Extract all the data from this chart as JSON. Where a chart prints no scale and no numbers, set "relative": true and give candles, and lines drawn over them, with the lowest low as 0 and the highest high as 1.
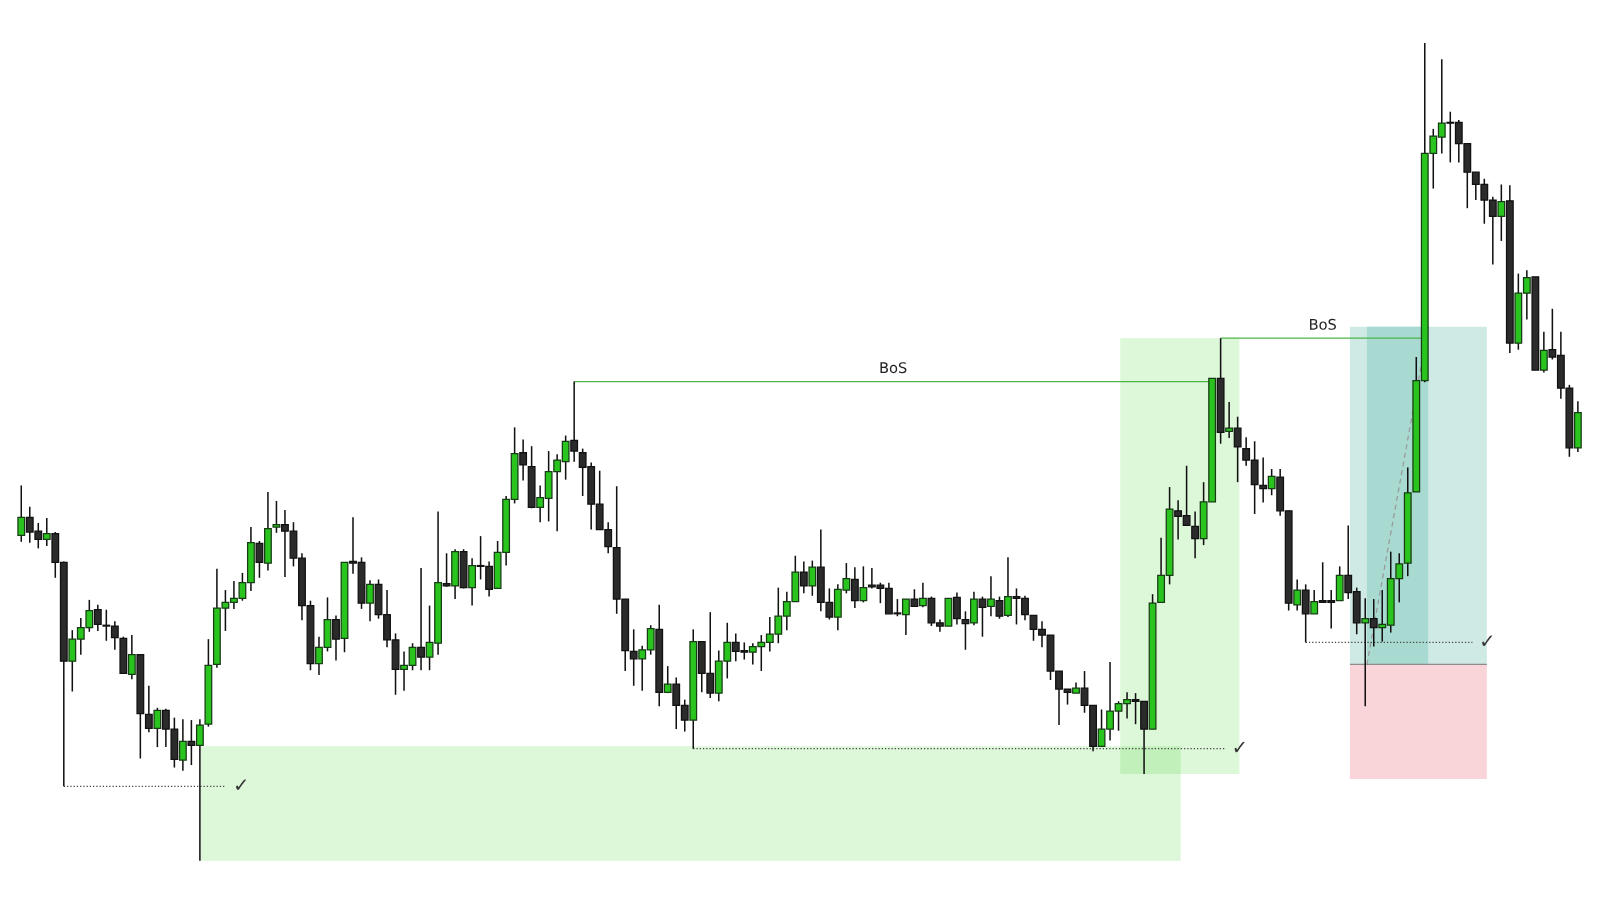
{
  "chart_data": {
    "type": "candlestick",
    "relative": true,
    "tick_labels": false,
    "categories": [
      null,
      null,
      null,
      null,
      null,
      null,
      null,
      null,
      null,
      null,
      null,
      null,
      null,
      null,
      null,
      null,
      null,
      null,
      null,
      null,
      null,
      null,
      null,
      null,
      null,
      null,
      null,
      null,
      null,
      null,
      null,
      null,
      null,
      null,
      null,
      null,
      null,
      null,
      null,
      null,
      null,
      null,
      null,
      null,
      null,
      null,
      null,
      null,
      null,
      null,
      null,
      null,
      null,
      null,
      null,
      null,
      null,
      null,
      null,
      null,
      null,
      null,
      null,
      null,
      null,
      null,
      null,
      null,
      null,
      null,
      null,
      null,
      null,
      null,
      null,
      null,
      null,
      null,
      null,
      null,
      null,
      null,
      null,
      null,
      null,
      null,
      null,
      null,
      null,
      null,
      null,
      null,
      null,
      null,
      null,
      null,
      null,
      null,
      null,
      null,
      null,
      null,
      null,
      null,
      null,
      null,
      null,
      null,
      null,
      null,
      null,
      null,
      null,
      null,
      null,
      null,
      null,
      null,
      null,
      null,
      null,
      null,
      null,
      null,
      null,
      null,
      null,
      null,
      null,
      null,
      null,
      null,
      null,
      null,
      null,
      null,
      null,
      null,
      null,
      null,
      null,
      null,
      null,
      null,
      null,
      null,
      null,
      null,
      null,
      null,
      null,
      null,
      null,
      null,
      null,
      null,
      null,
      null,
      null,
      null,
      null,
      null,
      null,
      null,
      null,
      null,
      null,
      null,
      null,
      null,
      null,
      null,
      null,
      null,
      null,
      null,
      null,
      null,
      null,
      null,
      null,
      null,
      null,
      null
    ],
    "ohlc": [
      [
        0.398,
        0.459,
        0.39,
        0.42
      ],
      [
        0.42,
        0.433,
        0.389,
        0.402
      ],
      [
        0.403,
        0.413,
        0.382,
        0.393
      ],
      [
        0.393,
        0.419,
        0.385,
        0.4
      ],
      [
        0.4,
        0.402,
        0.346,
        0.365
      ],
      [
        0.365,
        0.366,
        0.091,
        0.244
      ],
      [
        0.244,
        0.282,
        0.207,
        0.271
      ],
      [
        0.271,
        0.297,
        0.252,
        0.285
      ],
      [
        0.285,
        0.319,
        0.28,
        0.306
      ],
      [
        0.307,
        0.313,
        0.281,
        0.289
      ],
      [
        0.288,
        0.307,
        0.269,
        0.287
      ],
      [
        0.287,
        0.293,
        0.258,
        0.273
      ],
      [
        0.272,
        0.274,
        0.229,
        0.229
      ],
      [
        0.228,
        0.276,
        0.222,
        0.252
      ],
      [
        0.252,
        0.252,
        0.125,
        0.18
      ],
      [
        0.179,
        0.214,
        0.157,
        0.162
      ],
      [
        0.162,
        0.187,
        0.139,
        0.184
      ],
      [
        0.184,
        0.186,
        0.139,
        0.161
      ],
      [
        0.161,
        0.175,
        0.114,
        0.124
      ],
      [
        0.123,
        0.173,
        0.11,
        0.146
      ],
      [
        0.146,
        0.172,
        0.117,
        0.141
      ],
      [
        0.141,
        0.173,
        0.0,
        0.166
      ],
      [
        0.167,
        0.271,
        0.164,
        0.239
      ],
      [
        0.24,
        0.357,
        0.236,
        0.309
      ],
      [
        0.309,
        0.331,
        0.281,
        0.316
      ],
      [
        0.316,
        0.342,
        0.308,
        0.321
      ],
      [
        0.321,
        0.352,
        0.318,
        0.34
      ],
      [
        0.34,
        0.408,
        0.33,
        0.389
      ],
      [
        0.388,
        0.391,
        0.346,
        0.365
      ],
      [
        0.364,
        0.451,
        0.355,
        0.406
      ],
      [
        0.408,
        0.44,
        0.401,
        0.411
      ],
      [
        0.411,
        0.429,
        0.347,
        0.403
      ],
      [
        0.403,
        0.414,
        0.36,
        0.37
      ],
      [
        0.37,
        0.376,
        0.294,
        0.312
      ],
      [
        0.312,
        0.318,
        0.233,
        0.241
      ],
      [
        0.241,
        0.274,
        0.227,
        0.261
      ],
      [
        0.261,
        0.322,
        0.256,
        0.295
      ],
      [
        0.295,
        0.3,
        0.245,
        0.271
      ],
      [
        0.272,
        0.365,
        0.255,
        0.365
      ],
      [
        0.366,
        0.42,
        0.351,
        0.364
      ],
      [
        0.365,
        0.371,
        0.308,
        0.315
      ],
      [
        0.315,
        0.343,
        0.293,
        0.338
      ],
      [
        0.338,
        0.344,
        0.296,
        0.301
      ],
      [
        0.301,
        0.331,
        0.261,
        0.27
      ],
      [
        0.27,
        0.278,
        0.203,
        0.234
      ],
      [
        0.234,
        0.256,
        0.208,
        0.239
      ],
      [
        0.239,
        0.266,
        0.233,
        0.261
      ],
      [
        0.261,
        0.358,
        0.233,
        0.249
      ],
      [
        0.249,
        0.312,
        0.233,
        0.267
      ],
      [
        0.266,
        0.427,
        0.252,
        0.34
      ],
      [
        0.339,
        0.376,
        0.335,
        0.336
      ],
      [
        0.336,
        0.381,
        0.32,
        0.378
      ],
      [
        0.378,
        0.381,
        0.333,
        0.334
      ],
      [
        0.334,
        0.37,
        0.312,
        0.361
      ],
      [
        0.361,
        0.397,
        0.344,
        0.36
      ],
      [
        0.36,
        0.366,
        0.323,
        0.332
      ],
      [
        0.333,
        0.391,
        0.333,
        0.377
      ],
      [
        0.377,
        0.446,
        0.361,
        0.442
      ],
      [
        0.442,
        0.53,
        0.437,
        0.498
      ],
      [
        0.499,
        0.515,
        0.465,
        0.484
      ],
      [
        0.482,
        0.507,
        0.431,
        0.432
      ],
      [
        0.432,
        0.459,
        0.414,
        0.444
      ],
      [
        0.443,
        0.501,
        0.415,
        0.476
      ],
      [
        0.476,
        0.497,
        0.403,
        0.49
      ],
      [
        0.488,
        0.52,
        0.466,
        0.513
      ],
      [
        0.514,
        0.586,
        0.488,
        0.501
      ],
      [
        0.499,
        0.504,
        0.446,
        0.481
      ],
      [
        0.482,
        0.487,
        0.405,
        0.436
      ],
      [
        0.436,
        0.477,
        0.405,
        0.405
      ],
      [
        0.405,
        0.414,
        0.376,
        0.384
      ],
      [
        0.383,
        0.458,
        0.302,
        0.32
      ],
      [
        0.32,
        0.32,
        0.232,
        0.257
      ],
      [
        0.256,
        0.283,
        0.214,
        0.247
      ],
      [
        0.247,
        0.263,
        0.208,
        0.258
      ],
      [
        0.258,
        0.288,
        0.252,
        0.284
      ],
      [
        0.283,
        0.313,
        0.189,
        0.206
      ],
      [
        0.206,
        0.238,
        0.205,
        0.216
      ],
      [
        0.216,
        0.224,
        0.161,
        0.19
      ],
      [
        0.19,
        0.197,
        0.158,
        0.172
      ],
      [
        0.172,
        0.283,
        0.137,
        0.268
      ],
      [
        0.268,
        0.268,
        0.206,
        0.229
      ],
      [
        0.229,
        0.304,
        0.199,
        0.205
      ],
      [
        0.205,
        0.257,
        0.195,
        0.244
      ],
      [
        0.244,
        0.291,
        0.223,
        0.267
      ],
      [
        0.267,
        0.278,
        0.244,
        0.256
      ],
      [
        0.257,
        0.267,
        0.246,
        0.255
      ],
      [
        0.255,
        0.266,
        0.24,
        0.262
      ],
      [
        0.262,
        0.276,
        0.232,
        0.267
      ],
      [
        0.267,
        0.298,
        0.256,
        0.277
      ],
      [
        0.277,
        0.334,
        0.266,
        0.299
      ],
      [
        0.299,
        0.329,
        0.282,
        0.317
      ],
      [
        0.317,
        0.373,
        0.317,
        0.353
      ],
      [
        0.353,
        0.366,
        0.327,
        0.336
      ],
      [
        0.336,
        0.367,
        0.324,
        0.359
      ],
      [
        0.359,
        0.405,
        0.305,
        0.316
      ],
      [
        0.316,
        0.333,
        0.295,
        0.298
      ],
      [
        0.298,
        0.338,
        0.282,
        0.332
      ],
      [
        0.331,
        0.364,
        0.327,
        0.345
      ],
      [
        0.344,
        0.359,
        0.309,
        0.318
      ],
      [
        0.318,
        0.36,
        0.316,
        0.334
      ],
      [
        0.337,
        0.358,
        0.333,
        0.335
      ],
      [
        0.337,
        0.34,
        0.315,
        0.333
      ],
      [
        0.333,
        0.34,
        0.302,
        0.302
      ],
      [
        0.303,
        0.32,
        0.299,
        0.302
      ],
      [
        0.301,
        0.32,
        0.276,
        0.32
      ],
      [
        0.32,
        0.332,
        0.311,
        0.311
      ],
      [
        0.312,
        0.34,
        0.31,
        0.321
      ],
      [
        0.321,
        0.323,
        0.287,
        0.291
      ],
      [
        0.291,
        0.295,
        0.28,
        0.287
      ],
      [
        0.287,
        0.321,
        0.287,
        0.321
      ],
      [
        0.322,
        0.328,
        0.289,
        0.296
      ],
      [
        0.295,
        0.305,
        0.258,
        0.29
      ],
      [
        0.291,
        0.329,
        0.288,
        0.32
      ],
      [
        0.32,
        0.323,
        0.274,
        0.31
      ],
      [
        0.311,
        0.348,
        0.299,
        0.32
      ],
      [
        0.318,
        0.323,
        0.296,
        0.299
      ],
      [
        0.3,
        0.371,
        0.298,
        0.323
      ],
      [
        0.323,
        0.333,
        0.289,
        0.321
      ],
      [
        0.321,
        0.324,
        0.294,
        0.301
      ],
      [
        0.3,
        0.3,
        0.269,
        0.283
      ],
      [
        0.283,
        0.293,
        0.261,
        0.276
      ],
      [
        0.276,
        0.276,
        0.221,
        0.232
      ],
      [
        0.232,
        0.232,
        0.166,
        0.21
      ],
      [
        0.21,
        0.21,
        0.191,
        0.206
      ],
      [
        0.205,
        0.218,
        0.205,
        0.211
      ],
      [
        0.211,
        0.232,
        0.181,
        0.19
      ],
      [
        0.19,
        0.19,
        0.134,
        0.14
      ],
      [
        0.14,
        0.185,
        0.139,
        0.161
      ],
      [
        0.161,
        0.243,
        0.147,
        0.183
      ],
      [
        0.183,
        0.195,
        0.159,
        0.192
      ],
      [
        0.192,
        0.206,
        0.174,
        0.197
      ],
      [
        0.197,
        0.205,
        0.167,
        0.195
      ],
      [
        0.195,
        0.195,
        0.106,
        0.161
      ],
      [
        0.161,
        0.326,
        0.161,
        0.315
      ],
      [
        0.316,
        0.395,
        0.316,
        0.349
      ],
      [
        0.349,
        0.457,
        0.338,
        0.43
      ],
      [
        0.428,
        0.441,
        0.393,
        0.421
      ],
      [
        0.422,
        0.483,
        0.41,
        0.41
      ],
      [
        0.409,
        0.427,
        0.37,
        0.394
      ],
      [
        0.394,
        0.463,
        0.386,
        0.439
      ],
      [
        0.439,
        0.59,
        0.439,
        0.59
      ],
      [
        0.59,
        0.639,
        0.51,
        0.524
      ],
      [
        0.525,
        0.561,
        0.517,
        0.529
      ],
      [
        0.529,
        0.543,
        0.463,
        0.506
      ],
      [
        0.504,
        0.518,
        0.483,
        0.49
      ],
      [
        0.49,
        0.513,
        0.424,
        0.46
      ],
      [
        0.459,
        0.493,
        0.438,
        0.455
      ],
      [
        0.455,
        0.479,
        0.447,
        0.47
      ],
      [
        0.469,
        0.479,
        0.422,
        0.428
      ],
      [
        0.428,
        0.428,
        0.306,
        0.315
      ],
      [
        0.313,
        0.344,
        0.306,
        0.331
      ],
      [
        0.331,
        0.338,
        0.267,
        0.302
      ],
      [
        0.302,
        0.331,
        0.302,
        0.317
      ],
      [
        0.318,
        0.365,
        0.316,
        0.316
      ],
      [
        0.318,
        0.331,
        0.284,
        0.316
      ],
      [
        0.318,
        0.36,
        0.318,
        0.349
      ],
      [
        0.349,
        0.41,
        0.32,
        0.328
      ],
      [
        0.329,
        0.334,
        0.277,
        0.291
      ],
      [
        0.291,
        0.321,
        0.189,
        0.296
      ],
      [
        0.296,
        0.32,
        0.262,
        0.285
      ],
      [
        0.285,
        0.331,
        0.268,
        0.289
      ],
      [
        0.288,
        0.378,
        0.279,
        0.345
      ],
      [
        0.345,
        0.376,
        0.316,
        0.363
      ],
      [
        0.364,
        0.481,
        0.348,
        0.45
      ],
      [
        0.451,
        0.616,
        0.451,
        0.587
      ],
      [
        0.587,
        1.0,
        0.585,
        0.865
      ],
      [
        0.865,
        0.895,
        0.822,
        0.886
      ],
      [
        0.885,
        0.98,
        0.865,
        0.902
      ],
      [
        0.903,
        0.916,
        0.854,
        0.902
      ],
      [
        0.903,
        0.906,
        0.854,
        0.877
      ],
      [
        0.877,
        0.877,
        0.798,
        0.842
      ],
      [
        0.842,
        0.842,
        0.808,
        0.827
      ],
      [
        0.827,
        0.834,
        0.779,
        0.808
      ],
      [
        0.808,
        0.812,
        0.729,
        0.788
      ],
      [
        0.788,
        0.827,
        0.758,
        0.806
      ],
      [
        0.807,
        0.826,
        0.621,
        0.633
      ],
      [
        0.633,
        0.718,
        0.625,
        0.694
      ],
      [
        0.694,
        0.722,
        0.662,
        0.713
      ],
      [
        0.714,
        0.714,
        0.6,
        0.6
      ],
      [
        0.6,
        0.647,
        0.597,
        0.624
      ],
      [
        0.625,
        0.675,
        0.613,
        0.616
      ],
      [
        0.618,
        0.647,
        0.565,
        0.578
      ],
      [
        0.578,
        0.582,
        0.494,
        0.505
      ],
      [
        0.505,
        0.562,
        0.5,
        0.548
      ]
    ],
    "ref_lines": [
      {
        "axis": "y",
        "value": 0.586,
        "label": "BoS",
        "color": "#4cb548",
        "line_style": "solid"
      },
      {
        "axis": "y",
        "value": 0.639,
        "label": "BoS",
        "color": "#4cb548",
        "line_style": "solid"
      },
      {
        "axis": "y",
        "value": 0.091,
        "label": "✓",
        "color": "#444444",
        "line_style": "dotted"
      },
      {
        "axis": "y",
        "value": 0.137,
        "label": "✓",
        "color": "#444444",
        "line_style": "dotted"
      },
      {
        "axis": "y",
        "value": 0.267,
        "label": "✓",
        "color": "#444444",
        "line_style": "dotted"
      },
      {
        "axis": "y",
        "value": 0.24,
        "color": "#8c8c8c",
        "line_style": "solid"
      }
    ],
    "bands": [
      {
        "axis": "y",
        "from": 0.0,
        "to": 0.14,
        "color": "#ddf7d9"
      },
      {
        "axis": "y",
        "from": 0.106,
        "to": 0.639,
        "color": "#ddf7d9"
      },
      {
        "axis": "y",
        "from": 0.24,
        "to": 0.653,
        "color": "#cfe9e4"
      },
      {
        "axis": "y",
        "from": 0.1,
        "to": 0.24,
        "color": "#f9d5da"
      }
    ]
  }
}
